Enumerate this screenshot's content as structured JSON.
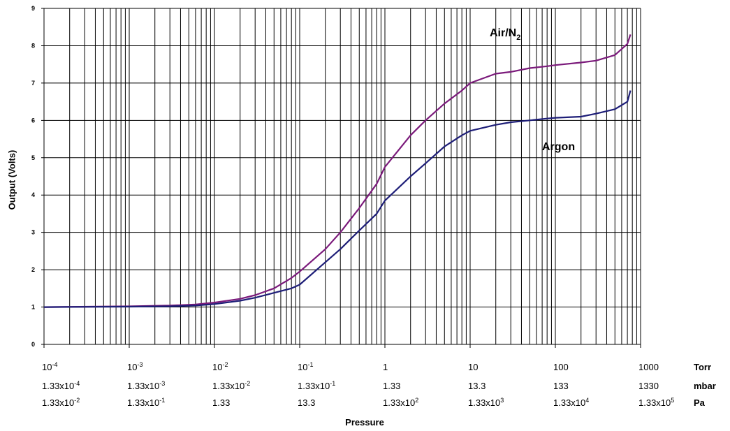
{
  "chart_data": {
    "type": "line",
    "xscale": "log",
    "xlim_torr": [
      0.0001,
      1000
    ],
    "ylim": [
      0,
      9
    ],
    "y_ticks": [
      "0",
      "1",
      "2",
      "3",
      "4",
      "5",
      "6",
      "7",
      "8",
      "9"
    ],
    "ylabel": "Output (Volts)",
    "xlabel": "Pressure",
    "grid": true,
    "x_tick_rows": [
      {
        "unit": "Torr",
        "labels": [
          {
            "base": "10",
            "exp": "-4"
          },
          {
            "base": "10",
            "exp": "-3"
          },
          {
            "base": "10",
            "exp": "-2"
          },
          {
            "base": "10",
            "exp": "-1"
          },
          {
            "base": "1",
            "exp": ""
          },
          {
            "base": "10",
            "exp": ""
          },
          {
            "base": "100",
            "exp": ""
          },
          {
            "base": "1000",
            "exp": ""
          }
        ]
      },
      {
        "unit": "mbar",
        "labels": [
          {
            "base": "1.33x10",
            "exp": "-4"
          },
          {
            "base": "1.33x10",
            "exp": "-3"
          },
          {
            "base": "1.33x10",
            "exp": "-2"
          },
          {
            "base": "1.33x10",
            "exp": "-1"
          },
          {
            "base": "1.33",
            "exp": ""
          },
          {
            "base": "13.3",
            "exp": ""
          },
          {
            "base": "133",
            "exp": ""
          },
          {
            "base": "1330",
            "exp": ""
          }
        ]
      },
      {
        "unit": "Pa",
        "labels": [
          {
            "base": "1.33x10",
            "exp": "-2"
          },
          {
            "base": "1.33x10",
            "exp": "-1"
          },
          {
            "base": "1.33",
            "exp": ""
          },
          {
            "base": "13.3",
            "exp": ""
          },
          {
            "base": "1.33x10",
            "exp": "2"
          },
          {
            "base": "1.33x10",
            "exp": "3"
          },
          {
            "base": "1.33x10",
            "exp": "4"
          },
          {
            "base": "1.33x10",
            "exp": "5"
          }
        ]
      }
    ],
    "series": [
      {
        "name": "Air/N",
        "name_sub": "2",
        "color": "#7b1a7b",
        "x": [
          0.0001,
          0.001,
          0.003,
          0.006,
          0.01,
          0.02,
          0.03,
          0.05,
          0.08,
          0.1,
          0.2,
          0.3,
          0.5,
          0.8,
          1,
          2,
          3,
          5,
          8,
          10,
          20,
          30,
          50,
          80,
          100,
          200,
          300,
          500,
          700,
          760
        ],
        "y": [
          1.0,
          1.02,
          1.04,
          1.07,
          1.12,
          1.22,
          1.32,
          1.5,
          1.78,
          1.95,
          2.55,
          3.0,
          3.65,
          4.3,
          4.75,
          5.6,
          6.0,
          6.45,
          6.8,
          7.0,
          7.25,
          7.3,
          7.4,
          7.45,
          7.48,
          7.55,
          7.6,
          7.75,
          8.05,
          8.3
        ]
      },
      {
        "name": "Argon",
        "name_sub": "",
        "color": "#1e1e78",
        "x": [
          0.0001,
          0.001,
          0.003,
          0.006,
          0.01,
          0.02,
          0.03,
          0.05,
          0.08,
          0.1,
          0.2,
          0.3,
          0.5,
          0.8,
          1,
          2,
          3,
          5,
          8,
          10,
          20,
          30,
          50,
          80,
          100,
          200,
          300,
          500,
          700,
          760
        ],
        "y": [
          1.0,
          1.01,
          1.02,
          1.04,
          1.08,
          1.17,
          1.25,
          1.38,
          1.5,
          1.6,
          2.2,
          2.55,
          3.05,
          3.5,
          3.85,
          4.5,
          4.85,
          5.3,
          5.6,
          5.72,
          5.88,
          5.95,
          6.0,
          6.05,
          6.07,
          6.1,
          6.18,
          6.3,
          6.5,
          6.8
        ]
      }
    ]
  }
}
